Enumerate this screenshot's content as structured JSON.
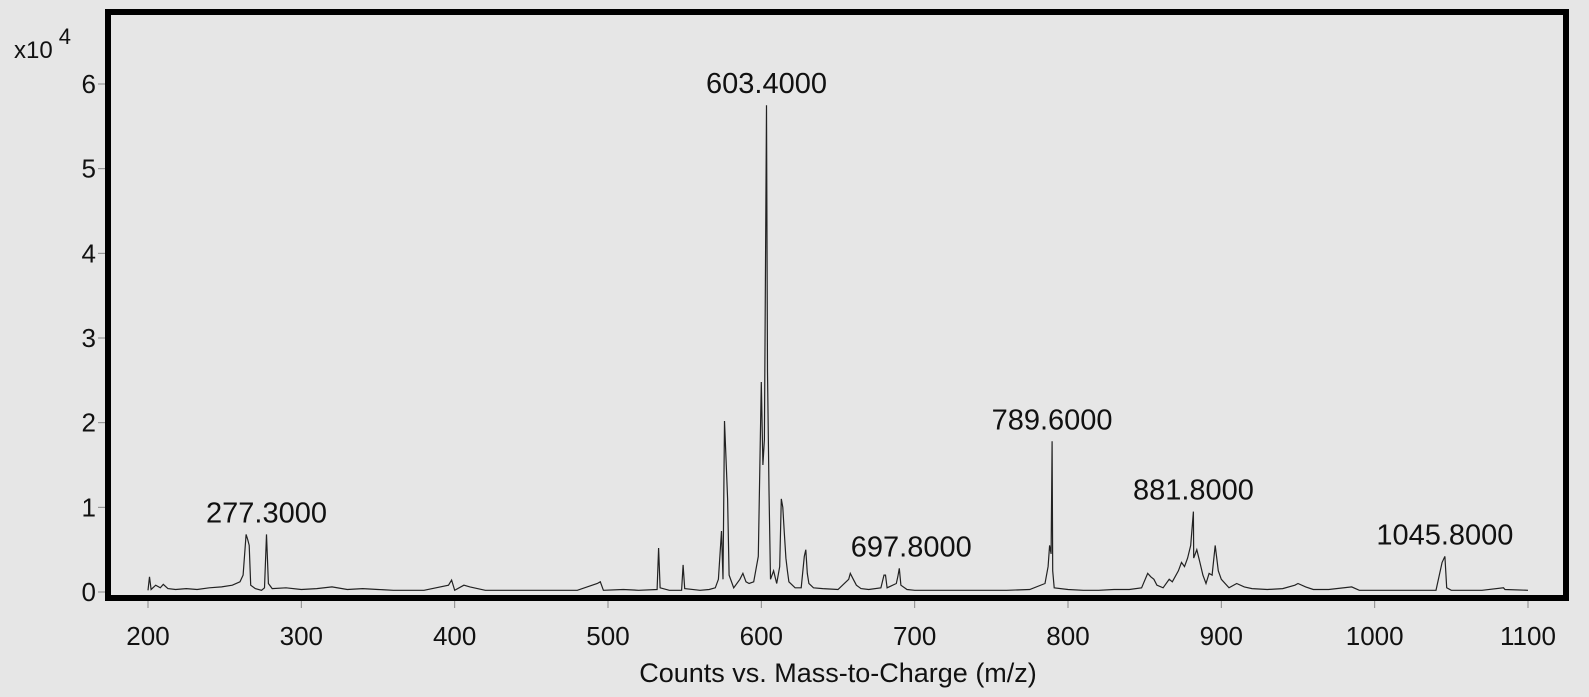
{
  "chart_data": {
    "type": "line",
    "title": "",
    "xlabel": "Counts vs. Mass-to-Charge (m/z)",
    "ylabel": "",
    "y_multiplier": {
      "base": "x10",
      "exponent": "4"
    },
    "xlim": [
      175,
      1120
    ],
    "ylim": [
      0,
      6.4
    ],
    "xticks": [
      200,
      300,
      400,
      500,
      600,
      700,
      800,
      900,
      1000,
      1100
    ],
    "yticks": [
      0,
      1,
      2,
      3,
      4,
      5,
      6
    ],
    "xtick_labels": [
      "200",
      "300",
      "400",
      "500",
      "600",
      "700",
      "800",
      "900",
      "1000",
      "1100"
    ],
    "ytick_labels": [
      "0",
      "1",
      "2",
      "3",
      "4",
      "5",
      "6"
    ],
    "grid": false,
    "line_color": "#222222",
    "frame_color": "#000000",
    "background": "#e6e6e6",
    "annotations": [
      {
        "text": "277.3000",
        "x": 277.3,
        "y": 0.68
      },
      {
        "text": "603.4000",
        "x": 603.4,
        "y": 5.75
      },
      {
        "text": "697.8000",
        "x": 697.8,
        "y": 0.28
      },
      {
        "text": "789.6000",
        "x": 789.6,
        "y": 1.78
      },
      {
        "text": "881.8000",
        "x": 881.8,
        "y": 0.95
      },
      {
        "text": "1045.8000",
        "x": 1045.8,
        "y": 0.42
      }
    ],
    "series": [
      {
        "values": [
          [
            200,
            0.02
          ],
          [
            201,
            0.18
          ],
          [
            202,
            0.03
          ],
          [
            205,
            0.08
          ],
          [
            208,
            0.05
          ],
          [
            210,
            0.09
          ],
          [
            213,
            0.04
          ],
          [
            218,
            0.03
          ],
          [
            225,
            0.04
          ],
          [
            232,
            0.03
          ],
          [
            240,
            0.05
          ],
          [
            248,
            0.06
          ],
          [
            255,
            0.08
          ],
          [
            260,
            0.12
          ],
          [
            262,
            0.2
          ],
          [
            264,
            0.68
          ],
          [
            265,
            0.62
          ],
          [
            266,
            0.55
          ],
          [
            267,
            0.08
          ],
          [
            270,
            0.04
          ],
          [
            274,
            0.02
          ],
          [
            276,
            0.05
          ],
          [
            277.3,
            0.68
          ],
          [
            278.5,
            0.1
          ],
          [
            281,
            0.04
          ],
          [
            290,
            0.05
          ],
          [
            300,
            0.03
          ],
          [
            310,
            0.04
          ],
          [
            320,
            0.06
          ],
          [
            330,
            0.03
          ],
          [
            340,
            0.04
          ],
          [
            350,
            0.03
          ],
          [
            360,
            0.02
          ],
          [
            370,
            0.02
          ],
          [
            380,
            0.02
          ],
          [
            396,
            0.08
          ],
          [
            398,
            0.14
          ],
          [
            400,
            0.02
          ],
          [
            406,
            0.08
          ],
          [
            410,
            0.06
          ],
          [
            420,
            0.02
          ],
          [
            440,
            0.02
          ],
          [
            460,
            0.02
          ],
          [
            480,
            0.02
          ],
          [
            493,
            0.1
          ],
          [
            495,
            0.12
          ],
          [
            497,
            0.02
          ],
          [
            510,
            0.03
          ],
          [
            520,
            0.02
          ],
          [
            532,
            0.03
          ],
          [
            533,
            0.52
          ],
          [
            534,
            0.05
          ],
          [
            540,
            0.02
          ],
          [
            548,
            0.02
          ],
          [
            549,
            0.32
          ],
          [
            550,
            0.04
          ],
          [
            560,
            0.02
          ],
          [
            566,
            0.03
          ],
          [
            570,
            0.05
          ],
          [
            572,
            0.15
          ],
          [
            574,
            0.72
          ],
          [
            575,
            0.15
          ],
          [
            576,
            2.02
          ],
          [
            577,
            1.55
          ],
          [
            578,
            1.1
          ],
          [
            579,
            0.2
          ],
          [
            582,
            0.05
          ],
          [
            586,
            0.15
          ],
          [
            588,
            0.22
          ],
          [
            590,
            0.12
          ],
          [
            592,
            0.1
          ],
          [
            595,
            0.12
          ],
          [
            598,
            0.42
          ],
          [
            600,
            2.48
          ],
          [
            601,
            1.5
          ],
          [
            602,
            1.8
          ],
          [
            603.4,
            5.75
          ],
          [
            604,
            2.6
          ],
          [
            605,
            1.2
          ],
          [
            606,
            0.15
          ],
          [
            608,
            0.25
          ],
          [
            610,
            0.1
          ],
          [
            612,
            0.3
          ],
          [
            613,
            1.1
          ],
          [
            614,
            1.0
          ],
          [
            615,
            0.7
          ],
          [
            616,
            0.4
          ],
          [
            617,
            0.25
          ],
          [
            618,
            0.12
          ],
          [
            622,
            0.05
          ],
          [
            626,
            0.05
          ],
          [
            628,
            0.42
          ],
          [
            629,
            0.5
          ],
          [
            630,
            0.22
          ],
          [
            631,
            0.1
          ],
          [
            634,
            0.05
          ],
          [
            640,
            0.04
          ],
          [
            650,
            0.03
          ],
          [
            657,
            0.15
          ],
          [
            658,
            0.22
          ],
          [
            660,
            0.15
          ],
          [
            662,
            0.08
          ],
          [
            665,
            0.04
          ],
          [
            670,
            0.03
          ],
          [
            678,
            0.05
          ],
          [
            680,
            0.2
          ],
          [
            681,
            0.2
          ],
          [
            682,
            0.05
          ],
          [
            688,
            0.1
          ],
          [
            689,
            0.18
          ],
          [
            690,
            0.28
          ],
          [
            691,
            0.08
          ],
          [
            695,
            0.03
          ],
          [
            700,
            0.02
          ],
          [
            720,
            0.02
          ],
          [
            740,
            0.02
          ],
          [
            760,
            0.02
          ],
          [
            775,
            0.03
          ],
          [
            785,
            0.1
          ],
          [
            787,
            0.3
          ],
          [
            788,
            0.55
          ],
          [
            789,
            0.45
          ],
          [
            789.6,
            1.78
          ],
          [
            790,
            0.25
          ],
          [
            791,
            0.05
          ],
          [
            800,
            0.03
          ],
          [
            810,
            0.02
          ],
          [
            820,
            0.02
          ],
          [
            830,
            0.03
          ],
          [
            840,
            0.03
          ],
          [
            848,
            0.05
          ],
          [
            852,
            0.22
          ],
          [
            854,
            0.18
          ],
          [
            856,
            0.15
          ],
          [
            858,
            0.08
          ],
          [
            862,
            0.05
          ],
          [
            866,
            0.15
          ],
          [
            868,
            0.12
          ],
          [
            872,
            0.25
          ],
          [
            874,
            0.35
          ],
          [
            876,
            0.3
          ],
          [
            878,
            0.4
          ],
          [
            880,
            0.55
          ],
          [
            881.8,
            0.95
          ],
          [
            882,
            0.4
          ],
          [
            884,
            0.5
          ],
          [
            886,
            0.35
          ],
          [
            888,
            0.2
          ],
          [
            890,
            0.1
          ],
          [
            892,
            0.22
          ],
          [
            894,
            0.2
          ],
          [
            896,
            0.55
          ],
          [
            898,
            0.25
          ],
          [
            900,
            0.15
          ],
          [
            905,
            0.05
          ],
          [
            910,
            0.1
          ],
          [
            915,
            0.06
          ],
          [
            920,
            0.04
          ],
          [
            930,
            0.03
          ],
          [
            940,
            0.04
          ],
          [
            948,
            0.08
          ],
          [
            950,
            0.1
          ],
          [
            955,
            0.06
          ],
          [
            960,
            0.03
          ],
          [
            970,
            0.03
          ],
          [
            985,
            0.06
          ],
          [
            990,
            0.02
          ],
          [
            1000,
            0.02
          ],
          [
            1020,
            0.02
          ],
          [
            1040,
            0.02
          ],
          [
            1044,
            0.35
          ],
          [
            1045.8,
            0.42
          ],
          [
            1047,
            0.05
          ],
          [
            1050,
            0.02
          ],
          [
            1070,
            0.02
          ],
          [
            1084,
            0.05
          ],
          [
            1085,
            0.03
          ],
          [
            1100,
            0.02
          ]
        ]
      }
    ]
  }
}
